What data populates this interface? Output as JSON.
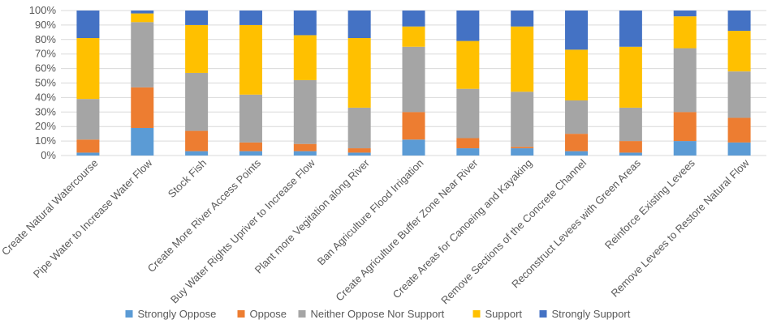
{
  "chart_data": {
    "type": "bar",
    "stacked": "percent",
    "title": "",
    "xlabel": "",
    "ylabel": "",
    "ylim": [
      0,
      100
    ],
    "y_ticks": [
      "0%",
      "10%",
      "20%",
      "30%",
      "40%",
      "50%",
      "60%",
      "70%",
      "80%",
      "90%",
      "100%"
    ],
    "grid": true,
    "legend_position": "bottom",
    "categories": [
      "Create Natural Watercourse",
      "Pipe Water to Increase Water Flow",
      "Stock Fish",
      "Create More River Access Points",
      "Buy Water Rights Upriver to Increase Flow",
      "Plant more Vegitation along River",
      "Ban Agriculture Flood Irrigation",
      "Create Agriculture Buffer Zone Near River",
      "Create Areas for Canoeing and Kayaking",
      "Remove Sections of the Concrete Channel",
      "Reconstruct Levees with Green Areas",
      "Reinforce Existing Levees",
      "Remove Levees to Restore Natural Flow"
    ],
    "series": [
      {
        "name": "Strongly Oppose",
        "color": "#5B9BD5",
        "values": [
          2,
          19,
          3,
          3,
          3,
          2,
          11,
          5,
          5,
          3,
          2,
          10,
          9
        ]
      },
      {
        "name": "Oppose",
        "color": "#ED7D31",
        "values": [
          9,
          28,
          14,
          6,
          5,
          3,
          19,
          7,
          1,
          12,
          8,
          20,
          17
        ]
      },
      {
        "name": "Neither Oppose Nor Support",
        "color": "#A5A5A5",
        "values": [
          28,
          45,
          40,
          33,
          44,
          28,
          45,
          34,
          38,
          23,
          23,
          44,
          32
        ]
      },
      {
        "name": "Support",
        "color": "#FFC000",
        "values": [
          42,
          6,
          33,
          48,
          31,
          48,
          14,
          33,
          45,
          35,
          42,
          22,
          28
        ]
      },
      {
        "name": "Strongly Support",
        "color": "#4472C4",
        "values": [
          19,
          2,
          10,
          10,
          17,
          19,
          11,
          21,
          11,
          27,
          25,
          4,
          14
        ]
      }
    ]
  }
}
